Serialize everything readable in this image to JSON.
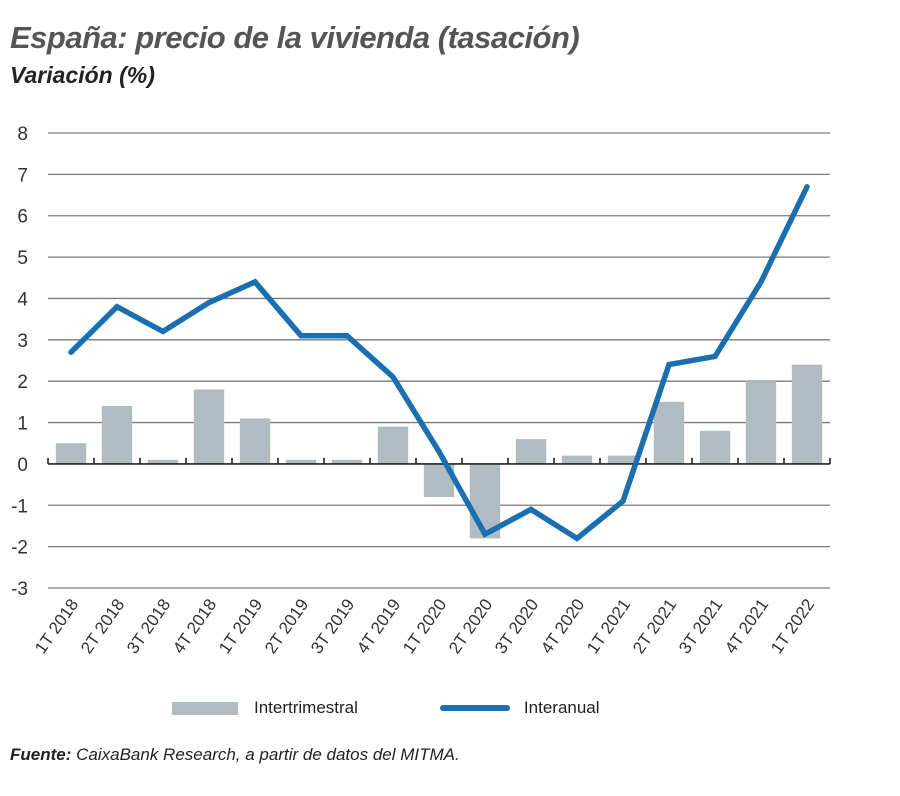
{
  "chart_data": {
    "type": "bar",
    "title": "España: precio de la vivienda (tasación)",
    "subtitle": "Variación (%)",
    "xlabel": "",
    "ylabel": "",
    "ylim": [
      -3,
      8
    ],
    "yticks": [
      8,
      7,
      6,
      5,
      4,
      3,
      2,
      1,
      0,
      -1,
      -2,
      -3
    ],
    "grid": true,
    "legend_position": "bottom",
    "categories": [
      "1T 2018",
      "2T 2018",
      "3T 2018",
      "4T 2018",
      "1T 2019",
      "2T 2019",
      "3T 2019",
      "4T 2019",
      "1T 2020",
      "2T 2020",
      "3T 2020",
      "4T 2020",
      "1T 2021",
      "2T 2021",
      "3T 2021",
      "4T 2021",
      "1T 2022"
    ],
    "series": [
      {
        "name": "Intertrimestral",
        "type": "bar",
        "color": "#b0bcc1",
        "values": [
          0.5,
          1.4,
          0.1,
          1.8,
          1.1,
          0.1,
          0.1,
          0.9,
          -0.8,
          -1.8,
          0.6,
          0.2,
          0.2,
          1.5,
          0.8,
          2.0,
          2.4
        ]
      },
      {
        "name": "Interanual",
        "type": "line",
        "color": "#1a6fb0",
        "values": [
          2.7,
          3.8,
          3.2,
          3.9,
          4.4,
          3.1,
          3.1,
          2.1,
          0.3,
          -1.7,
          -1.1,
          -1.8,
          -0.9,
          2.4,
          2.6,
          4.4,
          6.7
        ]
      }
    ]
  },
  "source": {
    "label": "Fuente:",
    "text": " CaixaBank Research, a partir de datos del MITMA."
  },
  "colors": {
    "grid": "#7a7a7a",
    "axis": "#222222"
  }
}
